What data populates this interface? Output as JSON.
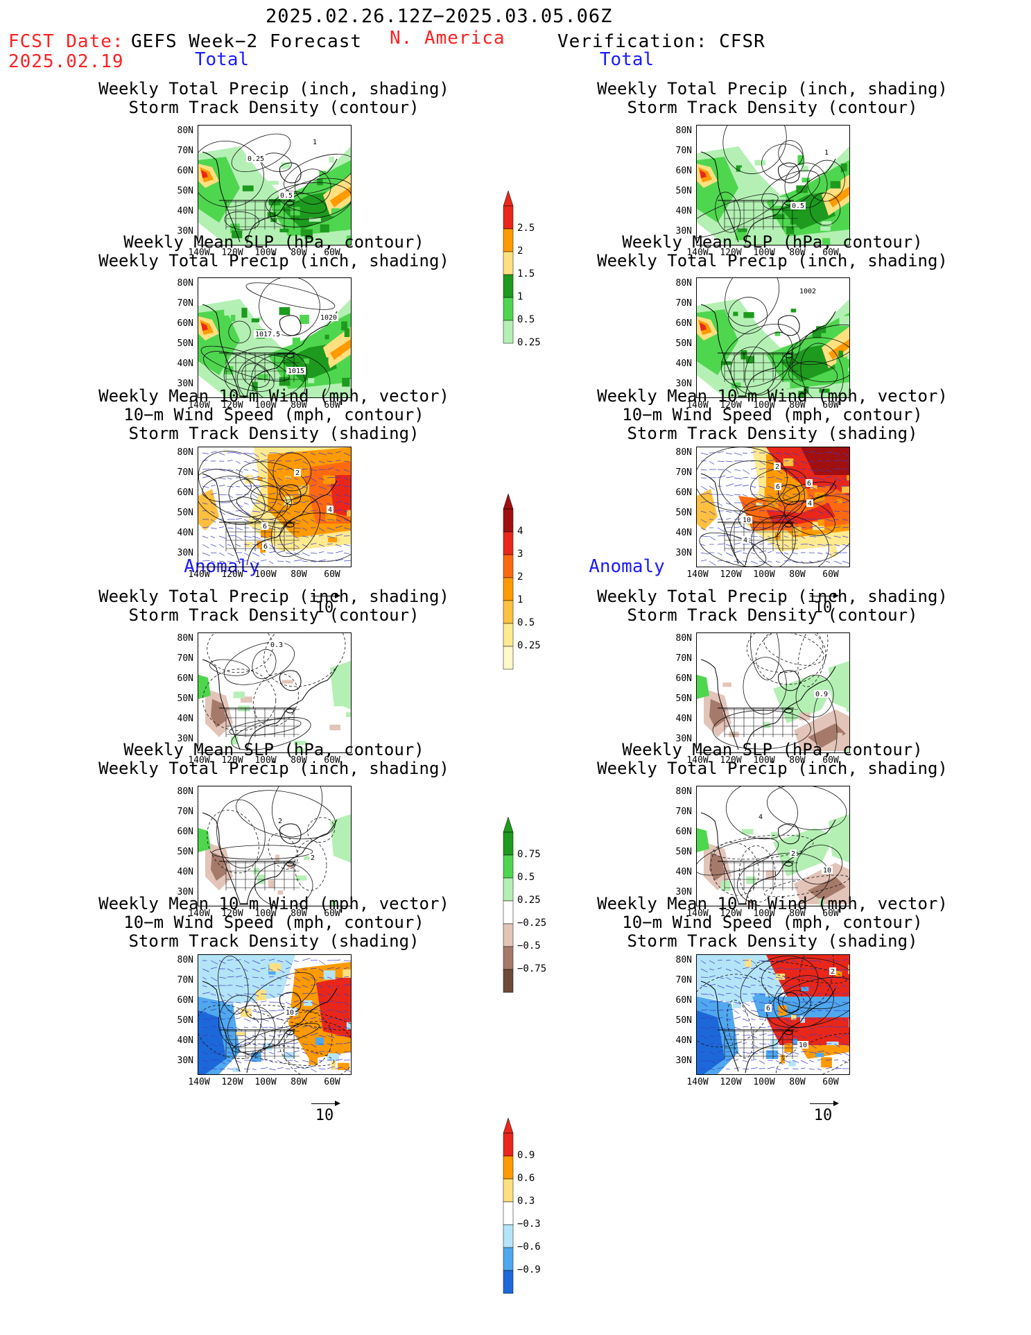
{
  "header": {
    "date_range": "2025.02.26.12Z−2025.03.05.06Z",
    "fcst_label": "FCST Date:",
    "fcst_date": "2025.02.19",
    "forecast_label": "GEFS Week−2 Forecast",
    "region": "N. America",
    "verification_label": "Verification: CFSR"
  },
  "sections": {
    "total": "Total",
    "anomaly": "Anomaly"
  },
  "panel_titles": {
    "precip_storm": [
      "Weekly Total Precip (inch, shading)",
      "Storm Track Density (contour)"
    ],
    "slp_precip": [
      "Weekly Mean SLP (hPa, contour)",
      "Weekly Total Precip (inch, shading)"
    ],
    "wind_storm": [
      "Weekly Mean 10−m Wind (mph, vector)",
      "10−m Wind Speed (mph, contour)",
      "Storm Track Density (shading)"
    ]
  },
  "axes": {
    "lat_labels": [
      "80N",
      "70N",
      "60N",
      "50N",
      "40N",
      "30N"
    ],
    "lon_labels": [
      "140W",
      "120W",
      "100W",
      "80W",
      "60W"
    ]
  },
  "vector_scale": "10",
  "colorbars": {
    "precip_total": {
      "labels": [
        "2.5",
        "2",
        "1.5",
        "1",
        "0.5",
        "0.25"
      ],
      "colors": [
        "#e8271a",
        "#ff9a00",
        "#ffe080",
        "#1e9a1e",
        "#4fd64f",
        "#b4f0b4"
      ]
    },
    "storm_total": {
      "labels": [
        "4",
        "3",
        "2",
        "1",
        "0.5",
        "0.25"
      ],
      "colors": [
        "#a01010",
        "#e8271a",
        "#ff6a10",
        "#ff9a00",
        "#ffc040",
        "#ffea90",
        "#fff8c8"
      ]
    },
    "precip_anom": {
      "labels": [
        "0.75",
        "0.5",
        "0.25",
        "−0.25",
        "−0.5",
        "−0.75"
      ],
      "colors": [
        "#1e9a1e",
        "#4fd64f",
        "#b4f0b4",
        "#ffffff",
        "#e3c4b8",
        "#a57a6a",
        "#6e4a3a"
      ]
    },
    "storm_anom": {
      "labels": [
        "0.9",
        "0.6",
        "0.3",
        "−0.3",
        "−0.6",
        "−0.9"
      ],
      "colors": [
        "#e8271a",
        "#ff9a00",
        "#ffe080",
        "#ffffff",
        "#b4e4f8",
        "#50a8ee",
        "#1c68d8"
      ]
    }
  },
  "contour_labels": {
    "fcst_precip_total": [
      "0.25",
      "0.5",
      "1"
    ],
    "fcst_slp_total": [
      "1017.5",
      "1015",
      "1020"
    ],
    "fcst_wind_total": [
      "6",
      "2",
      "4",
      "6"
    ],
    "obs_precip_total": [
      "0.5",
      "1"
    ],
    "obs_slp_total": [
      "1002"
    ],
    "obs_wind_total": [
      "6",
      "10",
      "2",
      "4",
      "4",
      "6"
    ],
    "fcst_precip_anom": [
      "0.3"
    ],
    "obs_precip_anom": [
      "0.9"
    ],
    "fcst_slp_anom": [
      "2",
      "2"
    ],
    "obs_slp_anom": [
      "10",
      "4",
      "2"
    ],
    "fcst_wind_anom": [
      "10"
    ],
    "obs_wind_anom": [
      "2",
      "6",
      "10"
    ]
  }
}
